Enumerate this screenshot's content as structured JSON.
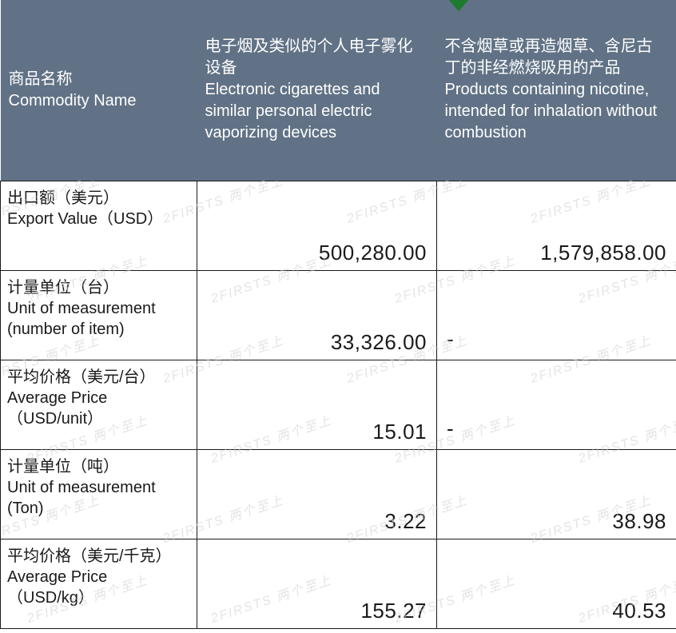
{
  "header": {
    "col0_zh": "商品名称",
    "col0_en": "Commodity Name",
    "col1_zh": "电子烟及类似的个人电子雾化设备",
    "col1_en": "Electronic cigarettes and similar personal electric vaporizing devices",
    "col2_zh": "不含烟草或再造烟草、含尼古丁的非经燃烧吸用的产品",
    "col2_en": "Products containing nicotine, intended for inhalation without combustion"
  },
  "rows": [
    {
      "label_zh": "出口额（美元）",
      "label_en": " Export Value（USD）",
      "v1": "500,280.00",
      "v2": "1,579,858.00"
    },
    {
      "label_zh": "计量单位（台）",
      "label_en": "Unit of measurement (number of item)",
      "v1": "33,326.00",
      "v2": "-"
    },
    {
      "label_zh": "平均价格（美元/台）",
      "label_en": "Average Price （USD/unit）",
      "v1": "15.01",
      "v2": "-"
    },
    {
      "label_zh": "计量单位（吨）",
      "label_en": "Unit of measurement (Ton)",
      "v1": "3.22",
      "v2": "38.98"
    },
    {
      "label_zh": "平均价格（美元/千克）",
      "label_en": "Average Price （USD/kg）",
      "v1": "155.27",
      "v2": "40.53"
    }
  ],
  "watermark_text": "2FIRSTS 两个至上",
  "colors": {
    "header_bg": "#617286",
    "header_text": "#ffffff",
    "border": "#1a1a1a",
    "body_text": "#1a1a1a",
    "watermark": "#cfcfcf",
    "arrow": "#1d7a2e",
    "page_bg": "#ffffff"
  }
}
